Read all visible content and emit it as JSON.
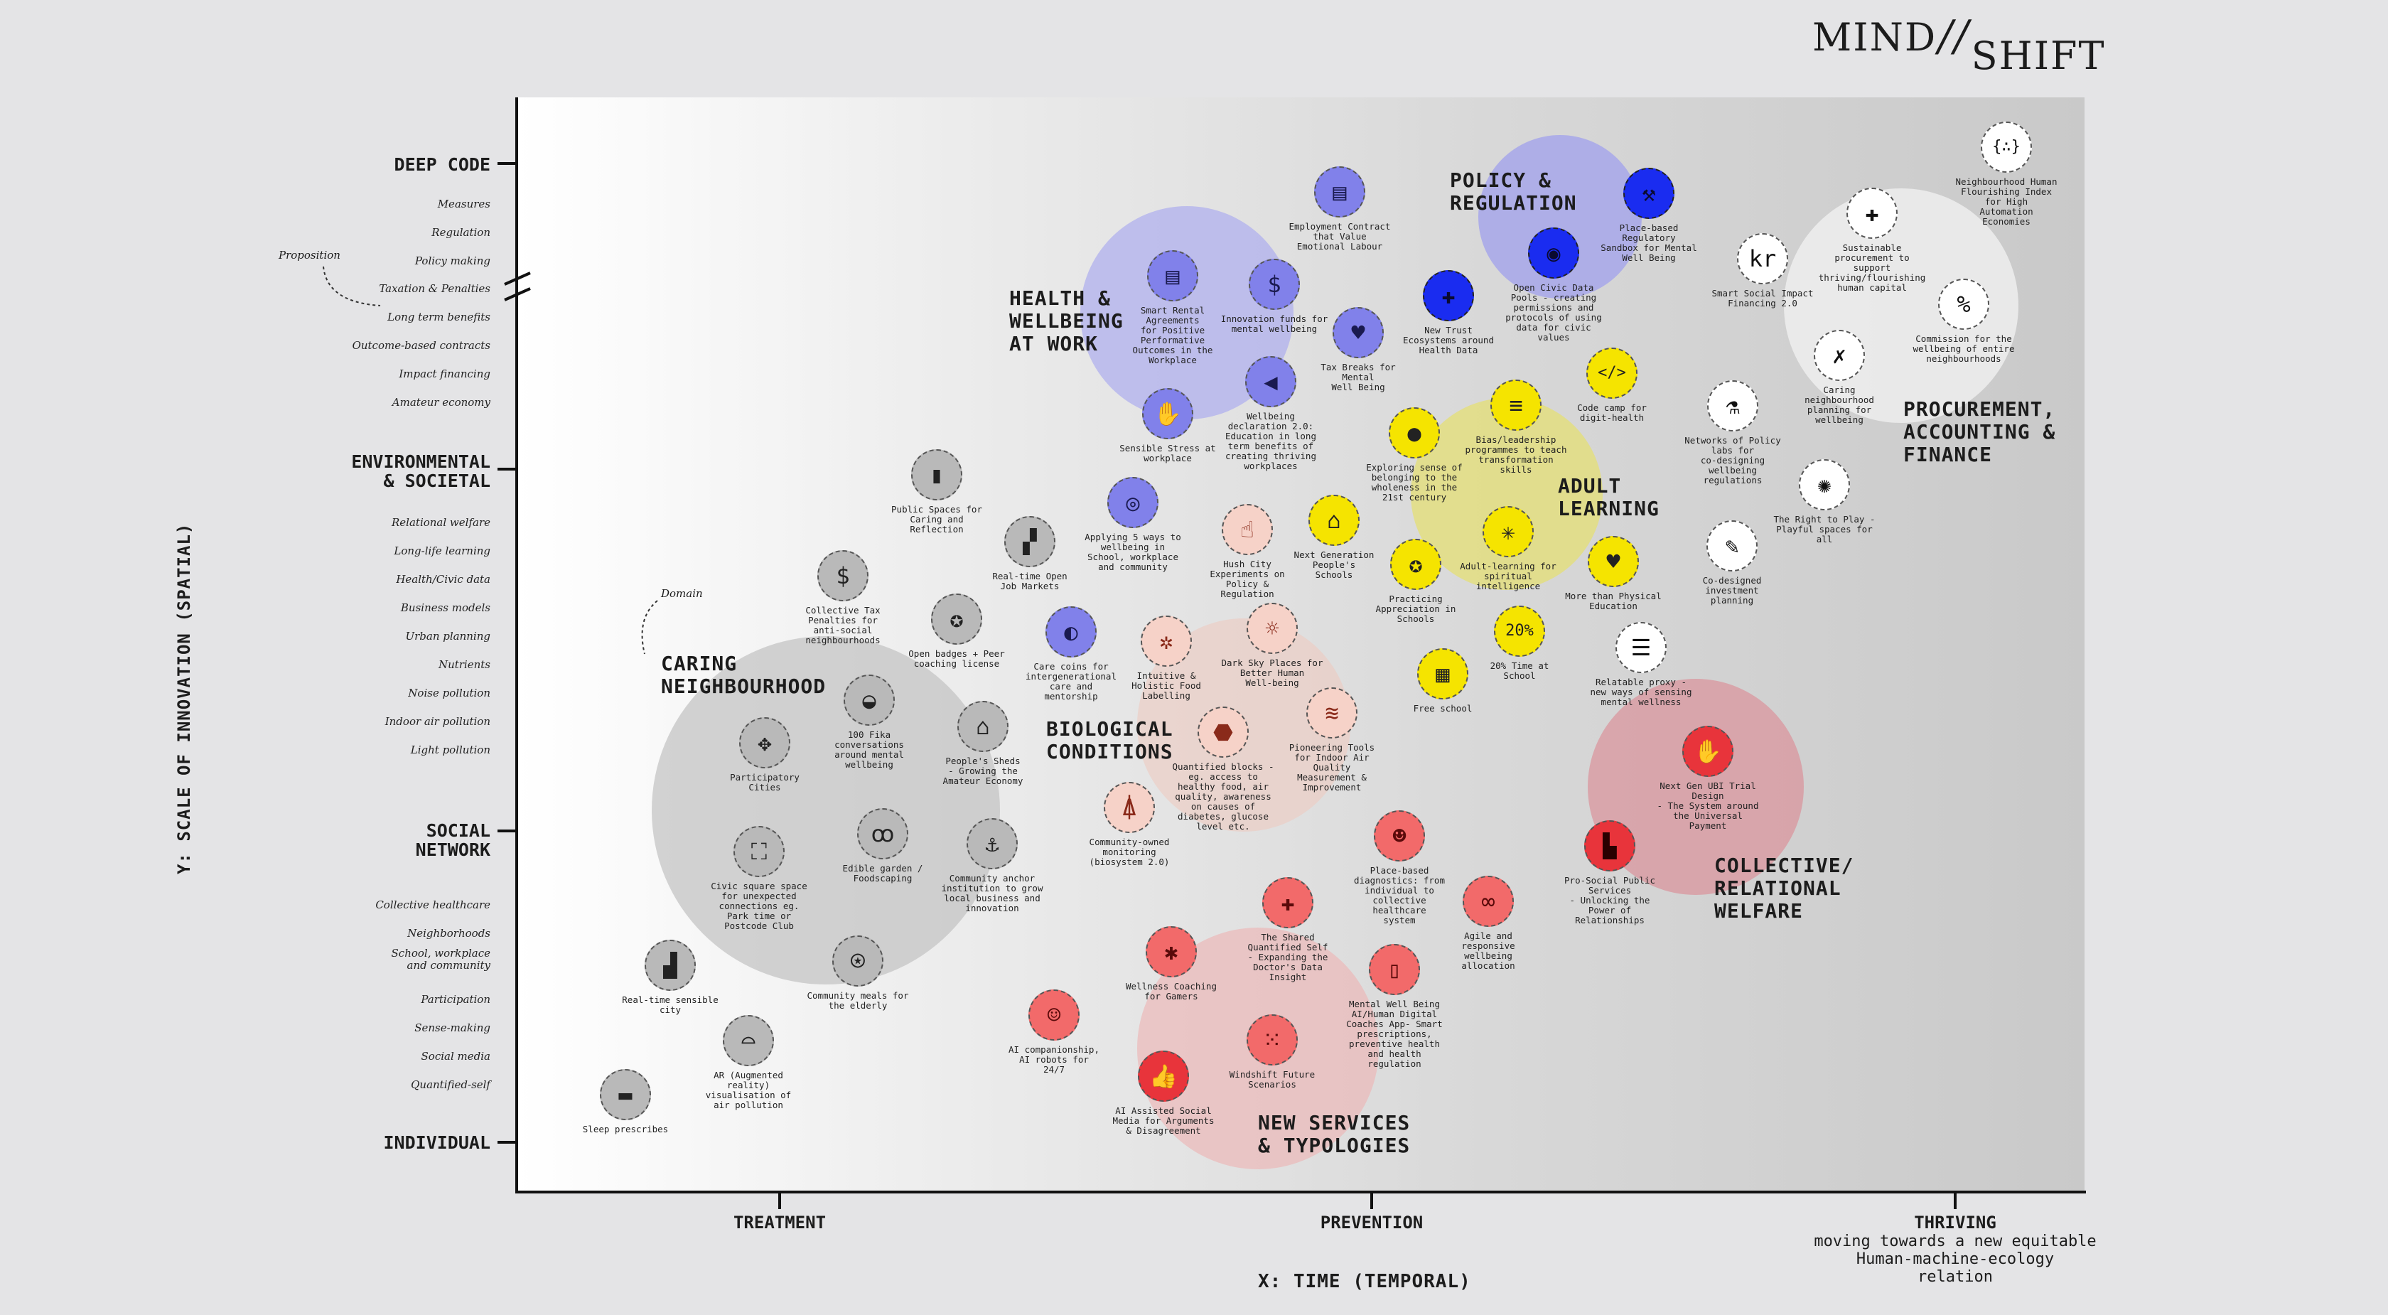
{
  "brand": {
    "logo_part1": "MIND",
    "logo_sep": "//",
    "logo_part2": "SHIFT"
  },
  "axes": {
    "y_title": "Y: SCALE OF INNOVATION (SPATIAL)",
    "x_title": "X: TIME (TEMPORAL)",
    "y_major": [
      "DEEP CODE",
      "ENVIRONMENTAL\n& SOCIETAL",
      "SOCIAL\nNETWORK",
      "INDIVIDUAL"
    ],
    "y_minor_deep": [
      "Measures",
      "Regulation",
      "Policy making",
      "Taxation & Penalties",
      "Long term benefits",
      "Outcome-based contracts",
      "Impact financing",
      "Amateur economy"
    ],
    "y_minor_env": [
      "Relational welfare",
      "Long-life learning",
      "Health/Civic data",
      "Business models",
      "Urban planning",
      "Nutrients",
      "Noise pollution",
      "Indoor air pollution",
      "Light pollution"
    ],
    "y_minor_social": [
      "Collective healthcare",
      "Neighborhoods",
      "School, workplace\nand community",
      "Participation",
      "Sense-making",
      "Social media",
      "Quantified-self"
    ],
    "x_major": [
      "TREATMENT",
      "PREVENTION",
      "THRIVING"
    ],
    "thriving_sub": "moving towards a new equitable\nHuman-machine-ecology\nrelation",
    "proposition": "Proposition",
    "domain": "Domain"
  },
  "clusters": {
    "health": "HEALTH &\nWELLBEING\nAT WORK",
    "policy": "POLICY &\nREGULATION",
    "procurement": "PROCUREMENT,\nACCOUNTING &\nFINANCE",
    "adult": "ADULT\nLEARNING",
    "caring": "CARING\nNEIGHBOURHOOD",
    "bio": "BIOLOGICAL\nCONDITIONS",
    "collective": "COLLECTIVE/\nRELATIONAL\nWELFARE",
    "newservices": "NEW SERVICES\n& TYPOLOGIES"
  },
  "nodes": [
    {
      "label": "Employment Contract\nthat Value\nEmotional Labour",
      "icon": "document-icon",
      "glyph": "▤"
    },
    {
      "label": "Smart Rental\nAgreements\nfor Positive\nPerformative\nOutcomes in the\nWorkplace",
      "icon": "contract-icon",
      "glyph": "▤"
    },
    {
      "label": "Innovation funds for\nmental wellbeing",
      "icon": "dollar-search-icon",
      "glyph": "$"
    },
    {
      "label": "Tax Breaks for\nMental\nWell Being",
      "icon": "tax-icon",
      "glyph": "♥"
    },
    {
      "label": "Wellbeing\ndeclaration 2.0:\nEducation in long\nterm benefits of\ncreating thriving\nworkplaces",
      "icon": "megaphone-icon",
      "glyph": "◀"
    },
    {
      "label": "Sensible Stress at\nworkplace",
      "icon": "hand-icon",
      "glyph": "✋"
    },
    {
      "label": "New Trust\nEcosystems around\nHealth Data",
      "icon": "health-data-icon",
      "glyph": "✚"
    },
    {
      "label": "Open Civic Data\nPools - creating\npermissions and\nprotocols of using\ndata for civic\nvalues",
      "icon": "database-icon",
      "glyph": "◉"
    },
    {
      "label": "Place-based\nRegulatory\nSandbox for Mental\nWell Being",
      "icon": "shovel-icon",
      "glyph": "⚒"
    },
    {
      "label": "Code camp for\ndigit-health",
      "icon": "code-icon",
      "glyph": "</>"
    },
    {
      "label": "Bias/leadership\nprogrammes to teach\ntransformation\nskills",
      "icon": "lines-icon",
      "glyph": "≡"
    },
    {
      "label": "Exploring sense of\nbelonging to the\nwholeness in the\n21st century",
      "icon": "egg-icon",
      "glyph": "●"
    },
    {
      "label": "Adult-learning for\nspiritual\nintelligence",
      "icon": "network-icon",
      "glyph": "✳"
    },
    {
      "label": "Next Generation\nPeople's\nSchools",
      "icon": "school-icon",
      "glyph": "⌂"
    },
    {
      "label": "Practicing\nAppreciation in\nSchools",
      "icon": "medal-icon",
      "glyph": "✪"
    },
    {
      "label": "20% Time at\nSchool",
      "icon": "percent-text-icon",
      "glyph": "20%"
    },
    {
      "label": "Free school",
      "icon": "building-icon",
      "glyph": "▦"
    },
    {
      "label": "More than Physical\nEducation",
      "icon": "heart-icon",
      "glyph": "♥"
    },
    {
      "label": "Smart Social Impact\nFinancing 2.0",
      "icon": "kr-icon",
      "glyph": "kr"
    },
    {
      "label": "Neighbourhood Human\nFlourishing Index\nfor High\nAutomation\nEconomies",
      "icon": "index-icon",
      "glyph": "{∴}"
    },
    {
      "label": "Sustainable\nprocurement to\nsupport\nthriving/flourishing\nhuman capital",
      "icon": "bag-icon",
      "glyph": "✚"
    },
    {
      "label": "Commission for the\nwellbeing of entire\nneighbourhoods",
      "icon": "percent-icon",
      "glyph": "%"
    },
    {
      "label": "Caring\nneighbourhood\nplanning for\nwellbeing",
      "icon": "planning-icon",
      "glyph": "✗"
    },
    {
      "label": "Networks of Policy\nlabs for\nco-designing\nwellbeing\nregulations",
      "icon": "flask-icon",
      "glyph": "⚗"
    },
    {
      "label": "The Right to Play -\nPlayful spaces for\nall",
      "icon": "play-icon",
      "glyph": "✺"
    },
    {
      "label": "Co-designed\ninvestment\nplanning",
      "icon": "pen-icon",
      "glyph": "✎"
    },
    {
      "label": "Relatable proxy -\nnew ways of sensing\nmental wellness",
      "icon": "sensing-icon",
      "glyph": "☰"
    },
    {
      "label": "Next Gen UBI Trial\nDesign\n- The System around\nthe Universal\nPayment",
      "icon": "ubi-icon",
      "glyph": "✋"
    },
    {
      "label": "Pro-Social Public\nServices\n- Unlocking the\nPower of\nRelationships",
      "icon": "public-services-icon",
      "glyph": "▙"
    },
    {
      "label": "Public Spaces for\nCaring and\nReflection",
      "icon": "space-icon",
      "glyph": "▮"
    },
    {
      "label": "Real-time Open\nJob Markets",
      "icon": "jobs-icon",
      "glyph": "▞"
    },
    {
      "label": "Applying 5 ways to\nwellbeing in\nSchool, workplace\nand community",
      "icon": "location-icon",
      "glyph": "◎"
    },
    {
      "label": "Hush City\nExperiments on\nPolicy &\nRegulation",
      "icon": "hush-icon",
      "glyph": "☝"
    },
    {
      "label": "Collective Tax\nPenalties for\nanti-social\nneighbourhoods",
      "icon": "money-bag-icon",
      "glyph": "$"
    },
    {
      "label": "Open badges + Peer\ncoaching license",
      "icon": "badge-icon",
      "glyph": "✪"
    },
    {
      "label": "Care coins for\nintergenerational\ncare and\nmentorship",
      "icon": "coin-icon",
      "glyph": "◐"
    },
    {
      "label": "Intuitive &\nHolistic Food\nLabelling",
      "icon": "graph-icon",
      "glyph": "✲"
    },
    {
      "label": "Dark Sky Places for\nBetter Human\nWell-being",
      "icon": "sun-icon",
      "glyph": "☼"
    },
    {
      "label": "100 Fika\nconversations\naround mental\nwellbeing",
      "icon": "cup-icon",
      "glyph": "◒"
    },
    {
      "label": "People's Sheds\n- Growing the\nAmateur Economy",
      "icon": "shed-icon",
      "glyph": "⌂"
    },
    {
      "label": "Participatory\nCities",
      "icon": "arrows-icon",
      "glyph": "✥"
    },
    {
      "label": "Quantified blocks -\neg. access to\nhealthy food, air\nquality, awareness\non causes of\ndiabetes, glucose\nlevel etc.",
      "icon": "block-icon",
      "glyph": "⬣"
    },
    {
      "label": "Pioneering Tools\nfor Indoor Air\nQuality\nMeasurement &\nImprovement",
      "icon": "air-icon",
      "glyph": "≋"
    },
    {
      "label": "Civic square space\nfor unexpected\nconnections eg.\nPark time or\nPostcode Club",
      "icon": "square-icon",
      "glyph": "⛶"
    },
    {
      "label": "Edible garden /\nFoodscaping",
      "icon": "cherry-icon",
      "glyph": "ꝏ"
    },
    {
      "label": "Community anchor\ninstitution to grow\nlocal business and\ninnovation",
      "icon": "anchor-icon",
      "glyph": "⚓"
    },
    {
      "label": "Community-owned\nmonitoring\n(biosystem 2.0)",
      "icon": "antenna-icon",
      "glyph": "⍋"
    },
    {
      "label": "Place-based\ndiagnostics: from\nindividual to\ncollective\nhealthcare\nsystem",
      "icon": "people-icon",
      "glyph": "☻"
    },
    {
      "label": "The Shared\nQuantified Self\n- Expanding the\nDoctor's Data\nInsight",
      "icon": "cross-icon",
      "glyph": "✚"
    },
    {
      "label": "Agile and\nresponsive\nwellbeing\nallocation",
      "icon": "loop-icon",
      "glyph": "∞"
    },
    {
      "label": "Real-time sensible\ncity",
      "icon": "city-icon",
      "glyph": "▟"
    },
    {
      "label": "Community meals for\nthe elderly",
      "icon": "meal-icon",
      "glyph": "⍟"
    },
    {
      "label": "Wellness Coaching\nfor Gamers",
      "icon": "game-icon",
      "glyph": "✱"
    },
    {
      "label": "Mental Well Being\nAI/Human Digital\nCoaches App- Smart\nprescriptions,\npreventive health\nand health\nregulation",
      "icon": "phone-icon",
      "glyph": "▯"
    },
    {
      "label": "AR (Augmented\nreality)\nvisualisation of\nair pollution",
      "icon": "vr-icon",
      "glyph": "⌓"
    },
    {
      "label": "AI companionship,\nAI robots for\n24/7",
      "icon": "robot-icon",
      "glyph": "☺"
    },
    {
      "label": "Windshift Future\nScenarios",
      "icon": "dots-icon",
      "glyph": "⁙"
    },
    {
      "label": "Sleep prescribes",
      "icon": "bed-icon",
      "glyph": "▬"
    },
    {
      "label": "AI Assisted Social\nMedia for Arguments\n& Disagreement",
      "icon": "like-icon",
      "glyph": "👍"
    }
  ]
}
